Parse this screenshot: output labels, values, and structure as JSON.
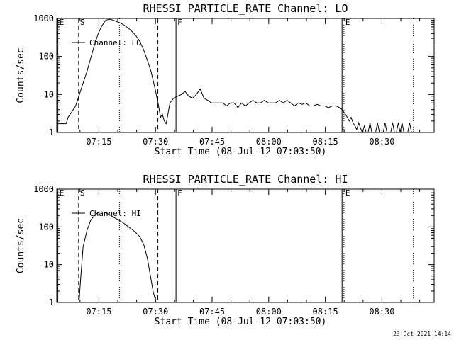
{
  "footer": {
    "timestamp": "23-Oct-2021 14:14"
  },
  "chart_data": [
    {
      "type": "line",
      "title": "RHESSI PARTICLE_RATE Channel: LO",
      "xlabel": "Start Time (08-Jul-12 07:03:50)",
      "ylabel": "Counts/sec",
      "x_unit": "minutes after 07:03:50",
      "xlim": [
        0,
        100
      ],
      "ylim": [
        1,
        1000
      ],
      "yscale": "log",
      "x_ticks": [
        {
          "x": 11.17,
          "label": "07:15"
        },
        {
          "x": 26.17,
          "label": "07:30"
        },
        {
          "x": 41.17,
          "label": "07:45"
        },
        {
          "x": 56.17,
          "label": "08:00"
        },
        {
          "x": 71.17,
          "label": "08:15"
        },
        {
          "x": 86.17,
          "label": "08:30"
        }
      ],
      "y_ticks": [
        {
          "y": 1,
          "label": "1"
        },
        {
          "y": 10,
          "label": "10"
        },
        {
          "y": 100,
          "label": "100"
        },
        {
          "y": 1000,
          "label": "1000"
        }
      ],
      "legend": {
        "label": "Channel: LO",
        "position": "top-left"
      },
      "markers": [
        {
          "x": 0.3,
          "label": "E",
          "style": "solid"
        },
        {
          "x": 5.8,
          "label": "S",
          "style": "dashed"
        },
        {
          "x": 16.6,
          "label": "",
          "style": "dotted"
        },
        {
          "x": 26.8,
          "label": "",
          "style": "dashed"
        },
        {
          "x": 31.6,
          "label": "F",
          "style": "solid"
        },
        {
          "x": 75.6,
          "label": "",
          "style": "solid"
        },
        {
          "x": 76.1,
          "label": "E",
          "style": "dotted"
        },
        {
          "x": 94.5,
          "label": "",
          "style": "dotted"
        }
      ],
      "series": [
        {
          "name": "Channel: LO",
          "x": [
            0,
            2.5,
            3,
            4,
            5,
            6,
            7,
            8,
            9,
            10,
            11,
            12,
            13,
            14,
            15,
            16,
            17,
            18,
            19,
            20,
            21,
            22,
            23,
            24,
            25,
            26,
            27,
            27.5,
            28,
            28.5,
            29,
            30,
            31,
            32,
            33,
            34,
            35,
            36,
            37,
            38,
            39,
            40,
            41,
            42,
            43,
            44,
            45,
            46,
            47,
            48,
            49,
            50,
            51,
            52,
            53,
            54,
            55,
            56,
            57,
            58,
            59,
            60,
            61,
            62,
            63,
            64,
            65,
            66,
            67,
            68,
            69,
            70,
            71,
            72,
            73,
            74,
            75,
            75.6,
            76,
            76.5,
            77,
            77.5,
            78,
            78.5,
            79,
            79.5,
            80,
            80.5,
            81,
            81.5,
            82,
            82.5,
            83,
            83.5,
            84,
            84.5,
            85,
            85.5,
            86,
            86.5,
            87,
            87.5,
            88,
            88.5,
            89,
            89.5,
            90,
            90.5,
            91,
            91.5,
            92,
            92.5,
            93,
            93.5,
            94,
            94.5,
            95
          ],
          "y": [
            1.7,
            1.7,
            2.5,
            3.5,
            5,
            10,
            20,
            40,
            90,
            200,
            400,
            650,
            900,
            950,
            900,
            820,
            750,
            650,
            550,
            450,
            350,
            250,
            150,
            80,
            40,
            15,
            5,
            2.5,
            3,
            2,
            1.7,
            6,
            8,
            9,
            10,
            12,
            9,
            8,
            10,
            14,
            8,
            7,
            6,
            6,
            6,
            6,
            5,
            6,
            6,
            4.5,
            6,
            5,
            6,
            7,
            6,
            6,
            7,
            6,
            6,
            6,
            7,
            6,
            7,
            6,
            5,
            6,
            5.5,
            6,
            5,
            5,
            5.5,
            5,
            5,
            4.5,
            5,
            5,
            4.5,
            4,
            3.5,
            3,
            2.5,
            2,
            2.5,
            1.8,
            1.5,
            1.2,
            1.8,
            1.3,
            1.0,
            1.5,
            1.0,
            1.0,
            1.8,
            1.0,
            1.0,
            1.0,
            1.8,
            1.0,
            1.0,
            1.0,
            1.8,
            1.0,
            1.0,
            1.0,
            1.8,
            1.0,
            1.0,
            1.8,
            1.0,
            1.8,
            1.0,
            1.0,
            1.0,
            1.8,
            1.0,
            1.0,
            1.0
          ]
        }
      ]
    },
    {
      "type": "line",
      "title": "RHESSI PARTICLE_RATE Channel: HI",
      "xlabel": "Start Time (08-Jul-12 07:03:50)",
      "ylabel": "Counts/sec",
      "x_unit": "minutes after 07:03:50",
      "xlim": [
        0,
        100
      ],
      "ylim": [
        1,
        1000
      ],
      "yscale": "log",
      "x_ticks": [
        {
          "x": 11.17,
          "label": "07:15"
        },
        {
          "x": 26.17,
          "label": "07:30"
        },
        {
          "x": 41.17,
          "label": "07:45"
        },
        {
          "x": 56.17,
          "label": "08:00"
        },
        {
          "x": 71.17,
          "label": "08:15"
        },
        {
          "x": 86.17,
          "label": "08:30"
        }
      ],
      "y_ticks": [
        {
          "y": 1,
          "label": "1"
        },
        {
          "y": 10,
          "label": "10"
        },
        {
          "y": 100,
          "label": "100"
        },
        {
          "y": 1000,
          "label": "1000"
        }
      ],
      "legend": {
        "label": "Channel: HI",
        "position": "top-left"
      },
      "markers": [
        {
          "x": 0.3,
          "label": "E",
          "style": "solid"
        },
        {
          "x": 5.8,
          "label": "S",
          "style": "dashed"
        },
        {
          "x": 16.6,
          "label": "",
          "style": "dotted"
        },
        {
          "x": 26.8,
          "label": "",
          "style": "dashed"
        },
        {
          "x": 31.6,
          "label": "F",
          "style": "solid"
        },
        {
          "x": 75.6,
          "label": "",
          "style": "solid"
        },
        {
          "x": 76.1,
          "label": "E",
          "style": "dotted"
        },
        {
          "x": 94.5,
          "label": "",
          "style": "dotted"
        }
      ],
      "series": [
        {
          "name": "Channel: HI",
          "x": [
            5.9,
            6.4,
            7,
            8,
            9,
            10,
            11,
            12,
            13,
            14,
            15,
            16,
            17,
            18,
            19,
            20,
            21,
            22,
            23,
            24,
            25,
            25.5,
            26,
            26.3
          ],
          "y": [
            1,
            5,
            30,
            80,
            150,
            200,
            240,
            250,
            235,
            210,
            180,
            160,
            140,
            120,
            100,
            85,
            70,
            55,
            35,
            15,
            4,
            2,
            1.3,
            1
          ]
        }
      ]
    }
  ]
}
